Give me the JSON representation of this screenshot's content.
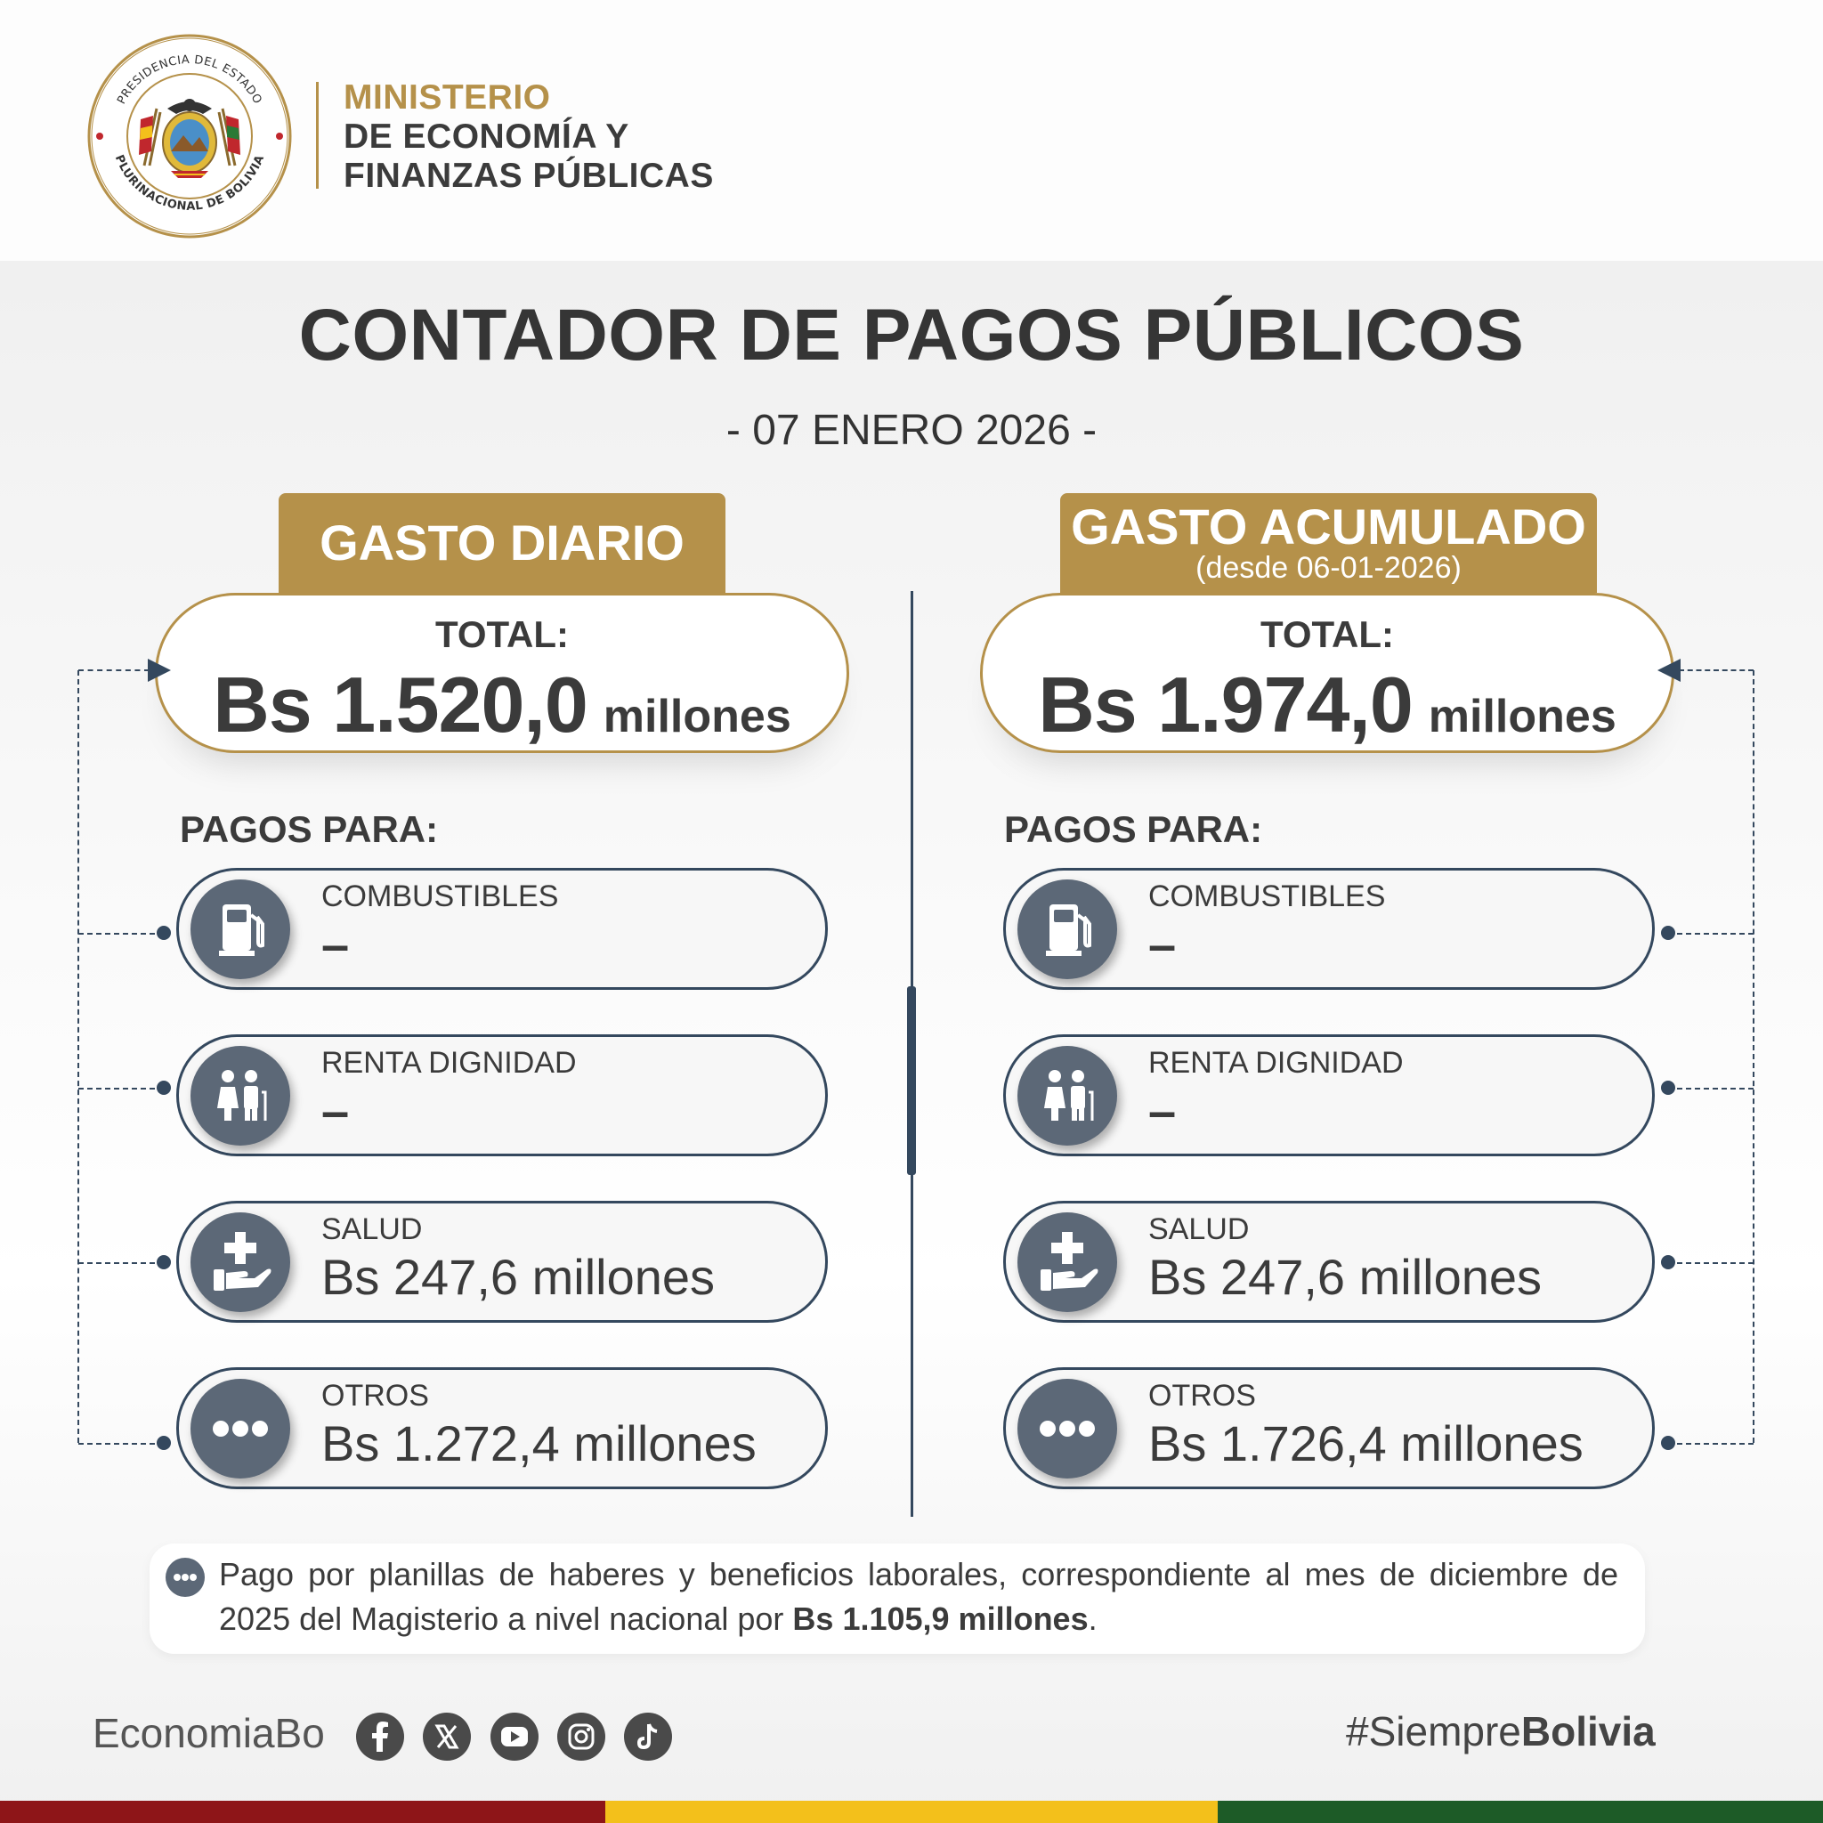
{
  "colors": {
    "gold": "#b5914a",
    "navy": "#34485e",
    "icon_bg": "#5c6877",
    "text": "#3b3b3b",
    "flag_red": "#8e1518",
    "flag_yellow": "#f3c01b",
    "flag_green": "#1d5b27"
  },
  "seal": {
    "top_text": "PRESIDENCIA DEL ESTADO",
    "bottom_text": "PLURINACIONAL DE BOLIVIA"
  },
  "ministry": {
    "line1": "MINISTERIO",
    "line2": "DE ECONOMÍA Y",
    "line3": "FINANZAS PÚBLICAS"
  },
  "title": "CONTADOR DE PAGOS PÚBLICOS",
  "date": "- 07 ENERO 2026 -",
  "daily": {
    "tab_title": "GASTO DIARIO",
    "total_label": "TOTAL:",
    "total_amount": "Bs 1.520,0",
    "total_unit": "millones",
    "pagos_label": "PAGOS PARA:",
    "items": [
      {
        "icon": "fuel-pump-icon",
        "label": "COMBUSTIBLES",
        "value": "–"
      },
      {
        "icon": "elderly-couple-icon",
        "label": "RENTA DIGNIDAD",
        "value": "–"
      },
      {
        "icon": "health-hand-icon",
        "label": "SALUD",
        "value": "Bs 247,6 millones"
      },
      {
        "icon": "more-dots-icon",
        "label": "OTROS",
        "value": "Bs 1.272,4 millones"
      }
    ]
  },
  "cumulative": {
    "tab_title": "GASTO ACUMULADO",
    "tab_subtitle": "(desde 06-01-2026)",
    "total_label": "TOTAL:",
    "total_amount": "Bs 1.974,0",
    "total_unit": "millones",
    "pagos_label": "PAGOS PARA:",
    "items": [
      {
        "icon": "fuel-pump-icon",
        "label": "COMBUSTIBLES",
        "value": "–"
      },
      {
        "icon": "elderly-couple-icon",
        "label": "RENTA DIGNIDAD",
        "value": "–"
      },
      {
        "icon": "health-hand-icon",
        "label": "SALUD",
        "value": "Bs 247,6 millones"
      },
      {
        "icon": "more-dots-icon",
        "label": "OTROS",
        "value": "Bs 1.726,4 millones"
      }
    ]
  },
  "footnote": {
    "text": "Pago por planillas de haberes y beneficios laborales, correspondiente al mes de diciembre de 2025 del Magisterio a nivel nacional por",
    "amount": "Bs 1.105,9 millones",
    "end": "."
  },
  "footer": {
    "handle": "EconomiaBo",
    "social": [
      "facebook-icon",
      "x-icon",
      "youtube-icon",
      "instagram-icon",
      "tiktok-icon"
    ],
    "hashtag_prefix": "#Siempre",
    "hashtag_bold": "Bolivia"
  }
}
